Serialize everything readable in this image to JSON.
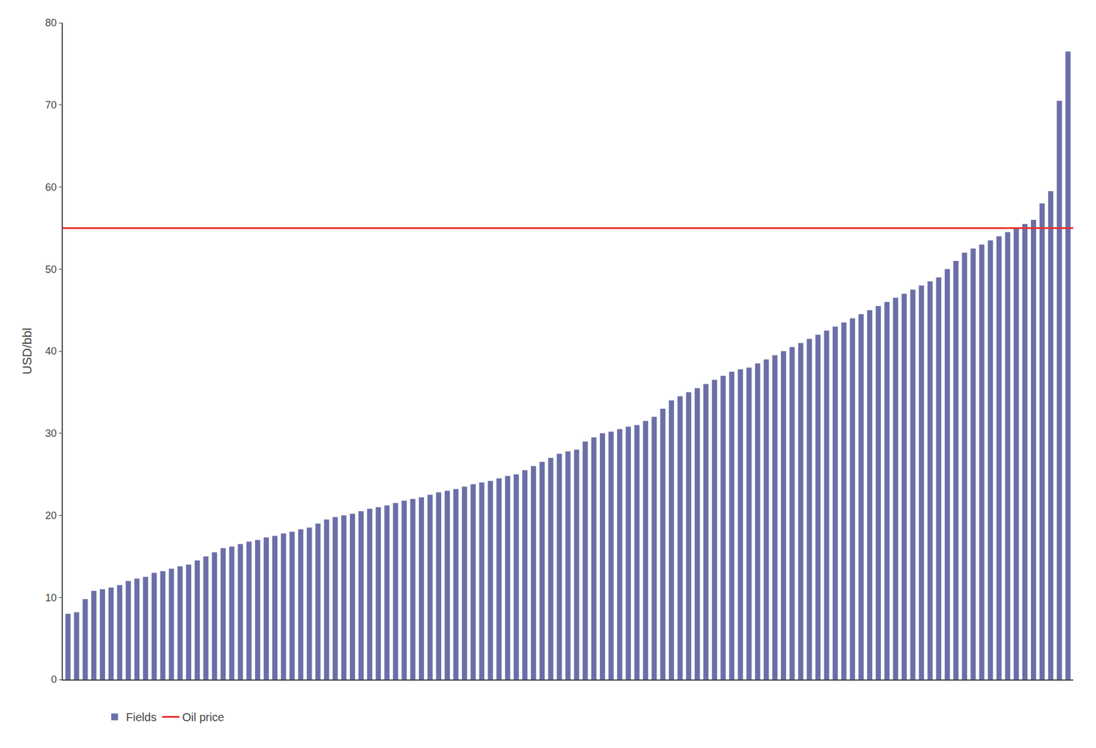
{
  "chart_data": {
    "type": "bar",
    "ylabel": "USD/bbl",
    "categories": [
      null,
      null,
      null,
      null,
      null,
      null,
      null,
      null,
      null,
      null,
      null,
      null,
      null,
      null,
      null,
      null,
      null,
      null,
      null,
      null,
      null,
      null,
      null,
      null,
      null,
      null,
      null,
      null,
      null,
      null,
      null,
      null,
      null,
      null,
      null,
      null,
      null,
      null,
      null,
      null,
      null,
      null,
      null,
      null,
      null,
      null,
      null,
      null,
      null,
      null,
      null,
      null,
      null,
      null,
      null,
      null,
      null,
      null,
      null,
      null,
      null,
      null,
      null,
      null,
      null,
      null,
      null,
      null,
      null,
      null,
      null,
      null,
      null,
      null,
      null,
      null,
      null,
      null,
      null,
      null,
      null,
      null,
      null,
      null,
      null,
      null,
      null,
      null,
      null,
      null,
      null,
      null,
      null,
      null,
      null,
      null,
      null,
      null,
      null,
      null,
      null,
      null,
      null,
      null,
      null,
      null,
      null,
      null,
      null,
      null,
      null,
      null,
      null,
      null,
      null,
      null,
      null
    ],
    "series": [
      {
        "name": "Fields",
        "color": "#6B6FA8",
        "values": [
          8.0,
          8.2,
          9.8,
          10.8,
          11.0,
          11.2,
          11.5,
          12.0,
          12.3,
          12.5,
          13.0,
          13.2,
          13.5,
          13.8,
          14.0,
          14.5,
          15.0,
          15.5,
          16.0,
          16.2,
          16.5,
          16.8,
          17.0,
          17.3,
          17.5,
          17.8,
          18.0,
          18.3,
          18.5,
          19.0,
          19.5,
          19.8,
          20.0,
          20.2,
          20.5,
          20.8,
          21.0,
          21.2,
          21.5,
          21.8,
          22.0,
          22.2,
          22.5,
          22.8,
          23.0,
          23.2,
          23.5,
          23.8,
          24.0,
          24.2,
          24.5,
          24.8,
          25.0,
          25.5,
          26.0,
          26.5,
          27.0,
          27.5,
          27.8,
          28.0,
          29.0,
          29.5,
          30.0,
          30.2,
          30.5,
          30.8,
          31.0,
          31.5,
          32.0,
          33.0,
          34.0,
          34.5,
          35.0,
          35.5,
          36.0,
          36.5,
          37.0,
          37.5,
          37.8,
          38.0,
          38.5,
          39.0,
          39.5,
          40.0,
          40.5,
          41.0,
          41.5,
          42.0,
          42.5,
          43.0,
          43.5,
          44.0,
          44.5,
          45.0,
          45.5,
          46.0,
          46.5,
          47.0,
          47.5,
          48.0,
          48.5,
          49.0,
          50.0,
          51.0,
          52.0,
          52.5,
          53.0,
          53.5,
          54.0,
          54.5,
          55.0,
          55.5,
          56.0,
          58.0,
          59.5,
          70.5,
          76.5
        ]
      }
    ],
    "lines": [
      {
        "name": "Oil price",
        "value": 55,
        "color": "#E8302A"
      }
    ],
    "ylim": [
      0,
      80
    ],
    "yticks": [
      0,
      10,
      20,
      30,
      40,
      50,
      60,
      70,
      80
    ],
    "grid": false,
    "legend": "bottom",
    "tick_labels": "y"
  }
}
